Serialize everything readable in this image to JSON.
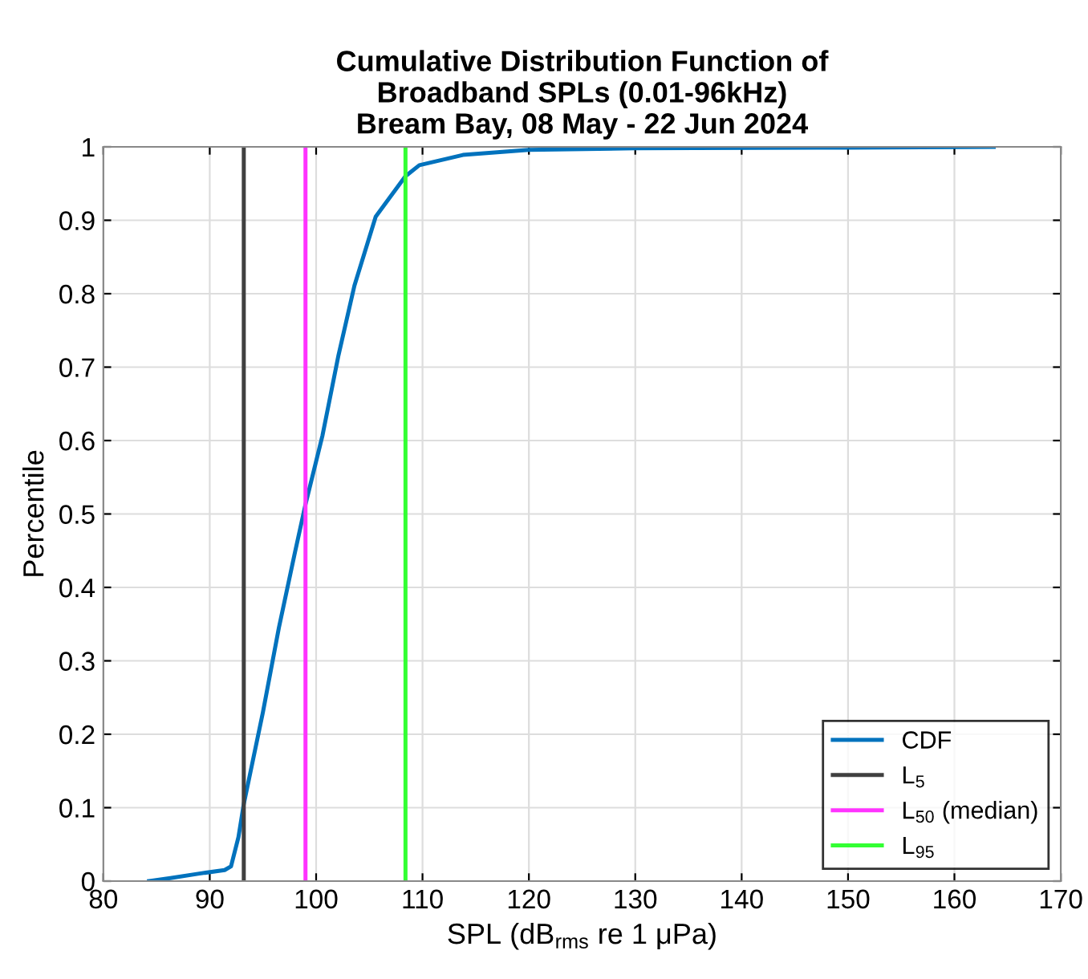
{
  "chart_data": {
    "type": "line",
    "title": "Cumulative Distribution Function of\nBroadband SPLs (0.01-96kHz)\nBream Bay, 08 May - 22 Jun 2024",
    "xlabel": "SPL (dB$_{rms}$ re 1 μPa)",
    "ylabel": "Percentile",
    "xlim": [
      80,
      170
    ],
    "xticks": [
      80,
      90,
      100,
      110,
      120,
      130,
      140,
      150,
      160,
      170
    ],
    "ylim": [
      0,
      1
    ],
    "yticks": [
      0,
      0.1,
      0.2,
      0.3,
      0.4,
      0.5,
      0.6,
      0.7,
      0.8,
      0.9,
      1
    ],
    "grid": true,
    "legend": "bottom right",
    "series": [
      {
        "name": "CDF",
        "color": "#0072bd",
        "x": [
          84.3,
          86.3,
          88.9,
          91.4,
          92.0,
          92.7,
          93.2,
          95.0,
          96.5,
          98.0,
          99.0,
          100.6,
          102.1,
          103.6,
          105.6,
          108.4,
          109.7,
          113.8,
          120,
          130,
          150,
          163.7
        ],
        "values": [
          0,
          0.004,
          0.01,
          0.015,
          0.02,
          0.06,
          0.105,
          0.23,
          0.345,
          0.447,
          0.513,
          0.607,
          0.716,
          0.811,
          0.905,
          0.96,
          0.975,
          0.989,
          0.996,
          0.998,
          0.999,
          1.0
        ]
      },
      {
        "name": "L$_{5}$",
        "color": "#404040",
        "x": [
          93.2,
          93.2
        ],
        "values": [
          0,
          1
        ]
      },
      {
        "name": "L$_{50}$ (median)",
        "color": "#ff33ff",
        "x": [
          99.0,
          99.0
        ],
        "values": [
          0,
          1
        ]
      },
      {
        "name": "L$_{95}$",
        "color": "#33ff33",
        "x": [
          108.4,
          108.4
        ],
        "values": [
          0,
          1
        ]
      }
    ]
  }
}
